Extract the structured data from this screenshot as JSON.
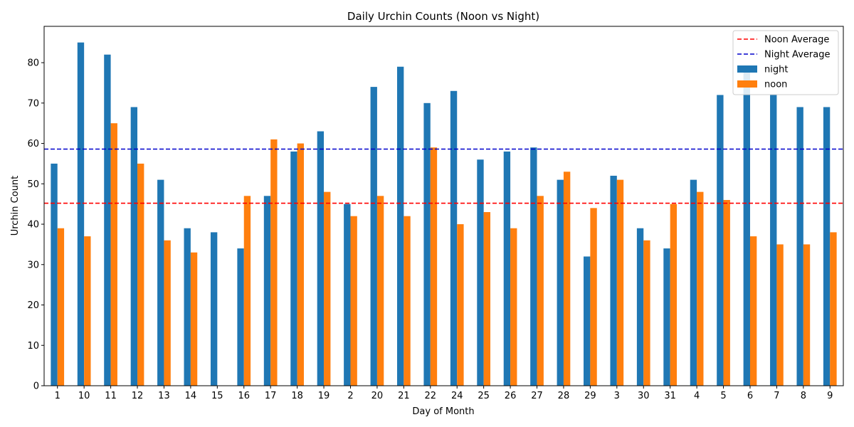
{
  "chart_data": {
    "type": "bar",
    "title": "Daily Urchin Counts (Noon vs Night)",
    "xlabel": "Day of Month",
    "ylabel": "Urchin Count",
    "ylim": [
      0,
      89
    ],
    "yticks": [
      0,
      10,
      20,
      30,
      40,
      50,
      60,
      70,
      80
    ],
    "grid": false,
    "legend_position": "top-right",
    "categories": [
      "1",
      "10",
      "11",
      "12",
      "13",
      "14",
      "15",
      "16",
      "17",
      "18",
      "19",
      "2",
      "20",
      "21",
      "22",
      "24",
      "25",
      "26",
      "27",
      "28",
      "29",
      "3",
      "30",
      "31",
      "4",
      "5",
      "6",
      "7",
      "8",
      "9"
    ],
    "series": [
      {
        "name": "night",
        "color": "#1f77b4",
        "values": [
          55,
          85,
          82,
          69,
          51,
          39,
          38,
          34,
          47,
          58,
          63,
          45,
          74,
          79,
          70,
          73,
          56,
          58,
          59,
          51,
          32,
          52,
          39,
          34,
          51,
          72,
          79,
          72,
          69,
          69
        ]
      },
      {
        "name": "noon",
        "color": "#ff7f0e",
        "values": [
          39,
          37,
          65,
          55,
          36,
          33,
          null,
          47,
          61,
          60,
          48,
          42,
          47,
          42,
          59,
          40,
          43,
          39,
          47,
          53,
          44,
          51,
          36,
          45,
          48,
          46,
          37,
          35,
          35,
          38
        ]
      }
    ],
    "reference_lines": [
      {
        "name": "Noon Average",
        "value": 45.2,
        "color": "#ff0000",
        "style": "dashed"
      },
      {
        "name": "Night Average",
        "value": 58.6,
        "color": "#0000cc",
        "style": "dashed"
      }
    ],
    "legend_order": [
      "Noon Average",
      "Night Average",
      "night",
      "noon"
    ]
  }
}
